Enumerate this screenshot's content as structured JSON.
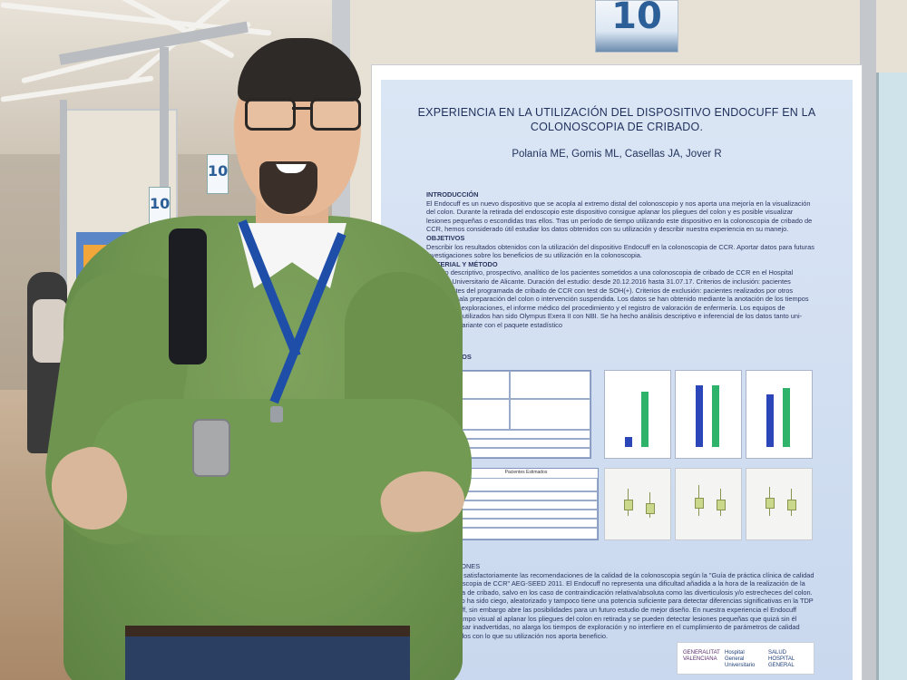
{
  "stand_number": "10",
  "side_signs": [
    "10",
    "10"
  ],
  "poster": {
    "title": "EXPERIENCIA EN LA UTILIZACIÓN DEL DISPOSITIVO ENDOCUFF EN LA COLONOSCOPIA DE CRIBADO.",
    "authors": "Polanía ME, Gomis ML, Casellas JA, Jover R",
    "sections": [
      {
        "heading": "INTRODUCCIÓN",
        "text": "El Endocuff es un nuevo dispositivo que se acopla al extremo distal del colonoscopio y nos aporta una mejoría en la visualización del colon. Durante la retirada del endoscopio este dispositivo consigue aplanar los pliegues del colon y es posible visualizar lesiones pequeñas o escondidas tras ellos. Tras un período de tiempo utilizando este dispositivo en la colonoscopia de cribado de CCR, hemos considerado útil estudiar los datos obtenidos con su utilización y describir nuestra experiencia en su manejo."
      },
      {
        "heading": "OBJETIVOS",
        "text": "Describir los resultados obtenidos con la utilización del dispositivo Endocuff en la colonoscopia de CCR. Aportar datos para futuras investigaciones sobre los beneficios de su utilización en la colonoscopia."
      },
      {
        "heading": "MATERIAL Y MÉTODO",
        "text": "Estudio descriptivo, prospectivo, analítico de los pacientes sometidos a una colonoscopia de cribado de CCR en el Hospital General Universitario de Alicante. Duración del estudio: desde 20.12.2016 hasta 31.07.17. Criterios de inclusión: pacientes provenientes del programada de cribado de CCR con test de SOH(+). Criterios de exclusión: pacientes realizados por otros equipos, mala preparación del colon o intervención suspendida. Los datos se han obtenido mediante la anotación de los tiempos durante las exploraciones, el informe médico del procedimiento y el registro de valoración de enfermería. Los equipos de endoscopia utilizados han sido Olympus Exera II con NBI. Se ha hecho análisis descriptivo e inferencial de los datos tanto uni- como multivariante con el paquete estadístico"
      }
    ],
    "results_heading": "RESULTADOS",
    "table_heading": "Pacientes Estimados",
    "conclusions_heading": "CONCLUSIONES",
    "conclusions": "Se cumplen satisfactoriamente las recomendaciones de la calidad de la colonoscopia según la \"Guía de práctica clínica de calidad en la colonoscopia de CCR\" AEG-SEED 2011. El Endocuff no representa una dificultad añadida a la hora de la realización de la colonoscopia de cribado, salvo en los caso de contraindicación relativa/absoluta como las diverticulosis y/o estrecheces del colon. El estudio no ha sido ciego, aleatorizado y tampoco tiene una potencia suficiente para detectar diferencias significativas en la TDP con Endocuff, sin embargo abre las posibilidades para un futuro estudio de mejor diseño. En nuestra experiencia el Endocuff mejora el campo visual al aplanar los pliegues del colon en retirada y se pueden detectar lesiones pequeñas que quizá sin él pudieran pasar inadvertidas, no alarga los tiempos de exploración y no interfiere en el cumplimiento de parámetros de calidad recomendados con lo que su utilización nos aporta beneficio.",
    "logos": [
      "GENERALITAT VALENCIANA",
      "Hospital General Universitario",
      "SALUD HOSPITAL GENERAL"
    ]
  },
  "bar_chart_colors": {
    "blue": "#2b46b8",
    "green": "#2fb36a"
  },
  "bar_charts": [
    {
      "values": [
        0.15,
        0.85
      ]
    },
    {
      "values": [
        0.95,
        0.95
      ]
    },
    {
      "values": [
        0.8,
        0.9
      ]
    }
  ]
}
